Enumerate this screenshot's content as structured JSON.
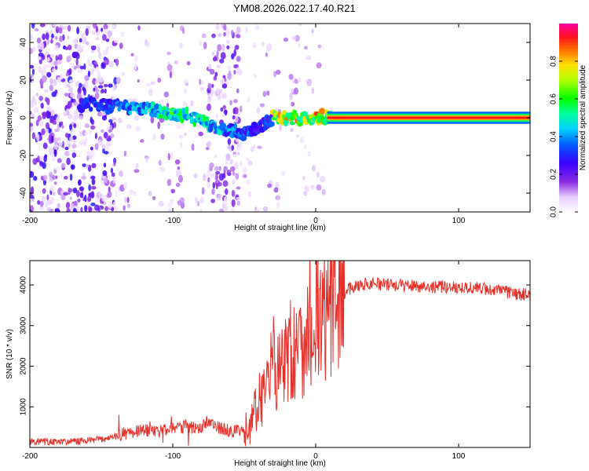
{
  "title": "YM08.2026.022.17.40.R21",
  "chart_data": [
    {
      "type": "heatmap",
      "name": "spectrogram",
      "xlabel": "Height of straight line (km)",
      "ylabel": "Frequency (Hz)",
      "xlim": [
        -200,
        150
      ],
      "ylim": [
        -50,
        50
      ],
      "xticks": [
        -200,
        -100,
        0,
        100
      ],
      "xtick_labels": [
        "-200",
        "-100",
        "0",
        "100"
      ],
      "yticks": [
        -40,
        -20,
        0,
        20,
        40
      ],
      "ytick_labels": [
        "-40",
        "-20",
        "0",
        "20",
        "40"
      ],
      "colorbar": {
        "label": "Normalized spectral amplitude",
        "range": [
          0,
          1
        ],
        "ticks": [
          0,
          0.2,
          0.4,
          0.6,
          0.8
        ],
        "tick_labels": [
          "0.0",
          "0.2",
          "0.4",
          "0.6",
          "0.8"
        ]
      },
      "ridge": {
        "x": [
          -160,
          -140,
          -125,
          -110,
          -100,
          -90,
          -80,
          -70,
          -60,
          -50,
          -40,
          -30,
          -20,
          -10,
          0,
          10,
          150
        ],
        "y": [
          7,
          6,
          5,
          4,
          2,
          1,
          -2,
          -5,
          -6,
          -8,
          -6,
          0,
          0,
          0,
          1,
          0,
          0
        ]
      }
    },
    {
      "type": "line",
      "name": "snr",
      "xlabel": "Height of straight line (km)",
      "ylabel": "SNR (10 * v/v)",
      "xlim": [
        -200,
        150
      ],
      "ylim": [
        0,
        4600
      ],
      "xticks": [
        -200,
        -100,
        0,
        100
      ],
      "xtick_labels": [
        "-200",
        "-100",
        "0",
        "100"
      ],
      "yticks": [
        1000,
        2000,
        3000,
        4000
      ],
      "ytick_labels": [
        "1000",
        "2000",
        "3000",
        "4000"
      ],
      "series": [
        {
          "name": "SNR",
          "color": "#e8302a",
          "x": [
            -200,
            -180,
            -160,
            -150,
            -140,
            -130,
            -120,
            -110,
            -100,
            -90,
            -80,
            -75,
            -70,
            -60,
            -50,
            -45,
            -40,
            -35,
            -30,
            -25,
            -20,
            -15,
            -10,
            -5,
            0,
            5,
            10,
            15,
            20,
            25,
            30,
            40,
            50,
            60,
            70,
            80,
            90,
            100,
            110,
            120,
            130,
            140,
            150
          ],
          "y": [
            150,
            130,
            160,
            200,
            280,
            380,
            420,
            380,
            480,
            520,
            450,
            700,
            500,
            420,
            380,
            600,
            1100,
            1600,
            1900,
            2100,
            2200,
            2300,
            2600,
            2800,
            3000,
            3200,
            3400,
            3600,
            3800,
            3950,
            4000,
            4050,
            4000,
            4000,
            3980,
            3950,
            3950,
            3950,
            3930,
            3900,
            3850,
            3780,
            3750
          ]
        }
      ]
    }
  ],
  "colors": {
    "line": "#e8302a",
    "frame": "#000000"
  }
}
